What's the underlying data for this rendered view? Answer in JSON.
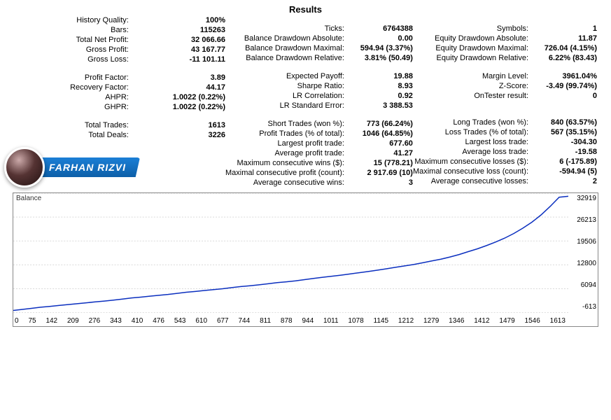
{
  "title": "Results",
  "author_name": "FARHAN RIZVI",
  "col1": [
    {
      "l": "History Quality:",
      "v": "100%"
    },
    {
      "l": "Bars:",
      "v": "115263"
    },
    {
      "l": "Total Net Profit:",
      "v": "32 066.66"
    },
    {
      "l": "Gross Profit:",
      "v": "43 167.77"
    },
    {
      "l": "Gross Loss:",
      "v": "-11 101.11"
    },
    null,
    {
      "l": "Profit Factor:",
      "v": "3.89"
    },
    {
      "l": "Recovery Factor:",
      "v": "44.17"
    },
    {
      "l": "AHPR:",
      "v": "1.0022 (0.22%)"
    },
    {
      "l": "GHPR:",
      "v": "1.0022 (0.22%)"
    },
    null,
    {
      "l": "Total Trades:",
      "v": "1613"
    },
    {
      "l": "Total Deals:",
      "v": "3226"
    }
  ],
  "col2": [
    null,
    {
      "l": "Ticks:",
      "v": "6764388"
    },
    {
      "l": "Balance Drawdown Absolute:",
      "v": "0.00"
    },
    {
      "l": "Balance Drawdown Maximal:",
      "v": "594.94 (3.37%)"
    },
    {
      "l": "Balance Drawdown Relative:",
      "v": "3.81% (50.49)"
    },
    null,
    {
      "l": "Expected Payoff:",
      "v": "19.88"
    },
    {
      "l": "Sharpe Ratio:",
      "v": "8.93"
    },
    {
      "l": "LR Correlation:",
      "v": "0.92"
    },
    {
      "l": "LR Standard Error:",
      "v": "3 388.53"
    },
    null,
    {
      "l": "Short Trades (won %):",
      "v": "773 (66.24%)"
    },
    {
      "l": "Profit Trades (% of total):",
      "v": "1046 (64.85%)"
    },
    {
      "l": "Largest profit trade:",
      "v": "677.60"
    },
    {
      "l": "Average profit trade:",
      "v": "41.27"
    },
    {
      "l": "Maximum consecutive wins ($):",
      "v": "15 (778.21)"
    },
    {
      "l": "Maximal consecutive profit (count):",
      "v": "2 917.69 (10)"
    },
    {
      "l": "Average consecutive wins:",
      "v": "3"
    }
  ],
  "col3": [
    null,
    {
      "l": "Symbols:",
      "v": "1"
    },
    {
      "l": "Equity Drawdown Absolute:",
      "v": "11.87"
    },
    {
      "l": "Equity Drawdown Maximal:",
      "v": "726.04 (4.15%)"
    },
    {
      "l": "Equity Drawdown Relative:",
      "v": "6.22% (83.43)"
    },
    null,
    {
      "l": "Margin Level:",
      "v": "3961.04%"
    },
    {
      "l": "Z-Score:",
      "v": "-3.49 (99.74%)"
    },
    {
      "l": "OnTester result:",
      "v": "0"
    },
    null,
    null,
    {
      "l": "Long Trades (won %):",
      "v": "840 (63.57%)"
    },
    {
      "l": "Loss Trades (% of total):",
      "v": "567 (35.15%)"
    },
    {
      "l": "Largest loss trade:",
      "v": "-304.30"
    },
    {
      "l": "Average loss trade:",
      "v": "-19.58"
    },
    {
      "l": "Maximum consecutive losses ($):",
      "v": "6 (-175.89)"
    },
    {
      "l": "Maximal consecutive loss (count):",
      "v": "-594.94 (5)"
    },
    {
      "l": "Average consecutive losses:",
      "v": "2"
    }
  ],
  "chart": {
    "type": "line",
    "label": "Balance",
    "line_color": "#0b2fbf",
    "grid_color": "#d9d9d9",
    "border_color": "#888888",
    "background_color": "#ffffff",
    "xlim": [
      0,
      1650
    ],
    "ylim": [
      -613,
      32919
    ],
    "yticks": [
      32919,
      26213,
      19506,
      12800,
      6094,
      -613
    ],
    "xticks": [
      0,
      75,
      142,
      209,
      276,
      343,
      410,
      476,
      543,
      610,
      677,
      744,
      811,
      878,
      944,
      1011,
      1078,
      1145,
      1212,
      1279,
      1346,
      1412,
      1479,
      1546,
      1613
    ],
    "series_y": [
      0,
      300,
      600,
      900,
      1150,
      1400,
      1650,
      1900,
      2150,
      2400,
      2650,
      2900,
      3200,
      3500,
      3750,
      4000,
      4250,
      4500,
      4800,
      5100,
      5350,
      5600,
      5850,
      6100,
      6400,
      6700,
      6950,
      7200,
      7500,
      7800,
      8050,
      8300,
      8650,
      9000,
      9300,
      9600,
      9900,
      10250,
      10600,
      10950,
      11300,
      11700,
      12100,
      12500,
      12900,
      13400,
      13900,
      14400,
      15000,
      15700,
      16500,
      17300,
      18200,
      19200,
      20300,
      21600,
      23100,
      24800,
      26800,
      29200,
      31800,
      32066
    ]
  }
}
